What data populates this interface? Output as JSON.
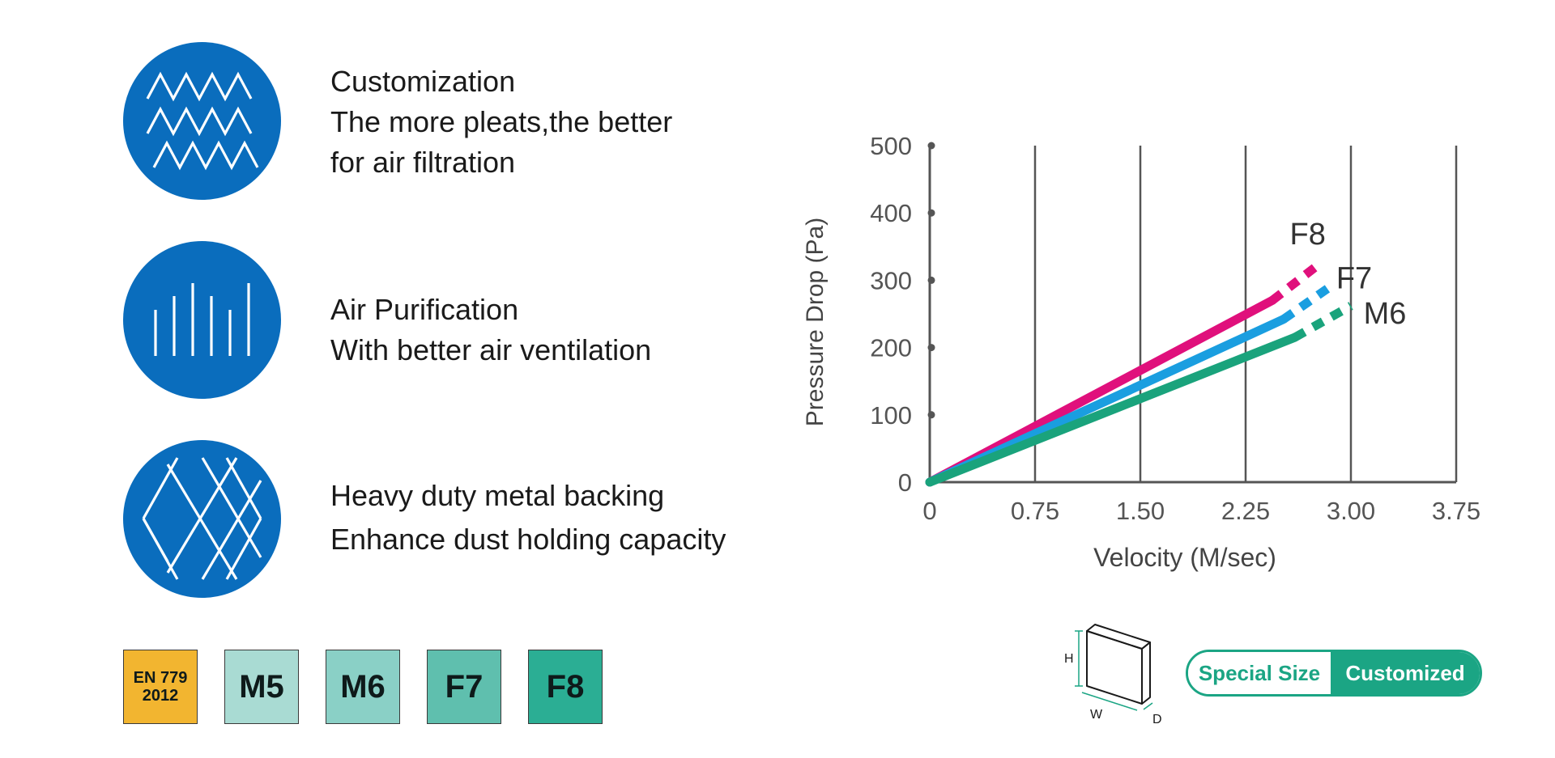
{
  "features": [
    {
      "icon": "zigzag-pleats-icon",
      "lines": [
        "Customization",
        "The more pleats,the better",
        "for air filtration"
      ]
    },
    {
      "icon": "vertical-lines-icon",
      "lines": [
        "Air Purification",
        "With better air ventilation"
      ]
    },
    {
      "icon": "diamond-mesh-icon",
      "lines": [
        "Heavy duty metal backing",
        "Enhance dust holding capacity"
      ]
    }
  ],
  "grades": [
    {
      "label": "EN 779\n2012",
      "line1": "EN 779",
      "line2": "2012",
      "color": "#f2b530"
    },
    {
      "label": "M5",
      "color": "#a9dbd3"
    },
    {
      "label": "M6",
      "color": "#8ad0c6"
    },
    {
      "label": "F7",
      "color": "#5fbfae"
    },
    {
      "label": "F8",
      "color": "#2bae94"
    }
  ],
  "chart_data": {
    "type": "line",
    "xlabel": "Velocity  (M/sec)",
    "ylabel": "Pressure Drop (Pa)",
    "x_ticks": [
      "0",
      "0.75",
      "1.50",
      "2.25",
      "3.00",
      "3.75"
    ],
    "y_ticks": [
      "0",
      "100",
      "200",
      "300",
      "400",
      "500"
    ],
    "xlim": [
      0,
      3.75
    ],
    "ylim": [
      0,
      500
    ],
    "grid": "vertical",
    "series": [
      {
        "name": "F8",
        "color": "#e0107c",
        "solid": [
          [
            0,
            0
          ],
          [
            2.44,
            270
          ]
        ],
        "dashed": [
          [
            2.44,
            270
          ],
          [
            2.75,
            320
          ]
        ]
      },
      {
        "name": "F7",
        "color": "#1a9ee0",
        "solid": [
          [
            0,
            0
          ],
          [
            2.52,
            242
          ]
        ],
        "dashed": [
          [
            2.52,
            242
          ],
          [
            2.85,
            290
          ]
        ]
      },
      {
        "name": "M6",
        "color": "#1aa37c",
        "solid": [
          [
            0,
            0
          ],
          [
            2.6,
            215
          ]
        ],
        "dashed": [
          [
            2.6,
            215
          ],
          [
            3.0,
            262
          ]
        ]
      }
    ]
  },
  "size_icon": {
    "h_label": "H",
    "w_label": "W",
    "d_label": "D"
  },
  "badge": {
    "left_label": "Special Size",
    "right_label": "Customized"
  }
}
